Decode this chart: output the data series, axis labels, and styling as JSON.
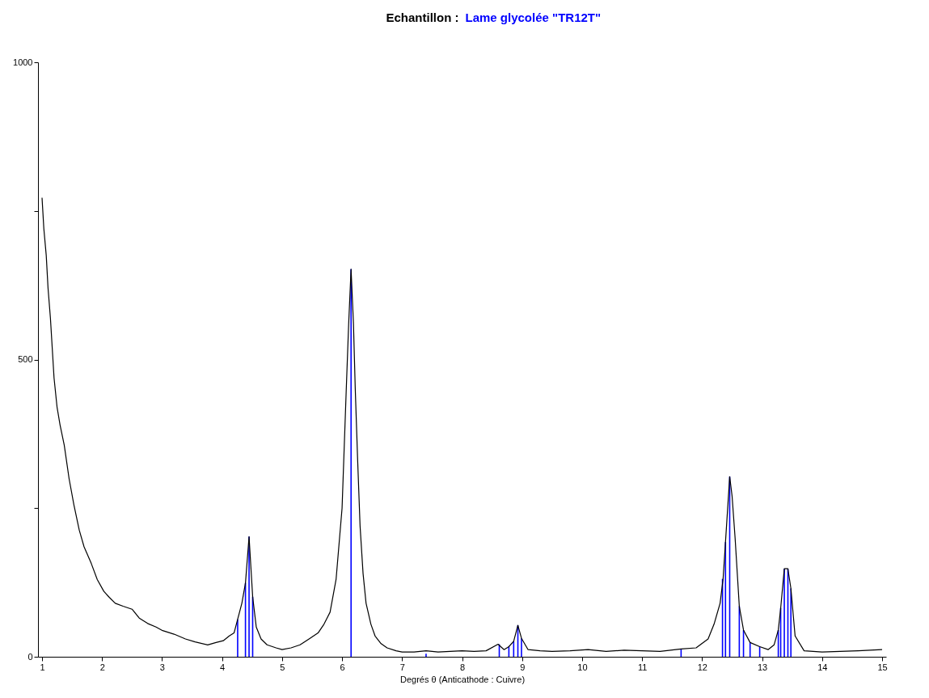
{
  "chart_data": {
    "type": "line",
    "title": "Echantillon :",
    "subtitle": "Lame glycolée \"TR12T\"",
    "xlabel": "Degrés θ (Anticathode : Cuivre)",
    "xlim": [
      1,
      15
    ],
    "xticks": [
      1,
      2,
      3,
      4,
      5,
      6,
      7,
      8,
      9,
      10,
      11,
      12,
      13,
      14,
      15
    ],
    "ylim": [
      0,
      1000
    ],
    "yticks": [
      0,
      {
        "value": 250,
        "label": null
      },
      500,
      {
        "value": 750,
        "label": null
      },
      1000
    ],
    "grid": false,
    "marker": "none",
    "line_style": "solid",
    "series": [
      {
        "color": "#000000",
        "x": [
          1.0,
          1.03,
          1.07,
          1.1,
          1.14,
          1.2,
          1.25,
          1.3,
          1.37,
          1.45,
          1.53,
          1.62,
          1.7,
          1.82,
          1.92,
          2.03,
          2.12,
          2.22,
          2.35,
          2.5,
          2.62,
          2.76,
          2.9,
          3.01,
          3.2,
          3.39,
          3.55,
          3.76,
          3.9,
          4.02,
          4.12,
          4.2,
          4.26,
          4.33,
          4.39,
          4.45,
          4.51,
          4.57,
          4.65,
          4.75,
          4.9,
          5.0,
          5.15,
          5.3,
          5.45,
          5.6,
          5.7,
          5.8,
          5.9,
          6.0,
          6.07,
          6.11,
          6.15,
          6.19,
          6.22,
          6.26,
          6.3,
          6.35,
          6.4,
          6.48,
          6.55,
          6.65,
          6.75,
          6.9,
          7.0,
          7.2,
          7.4,
          7.6,
          7.8,
          8.0,
          8.2,
          8.4,
          8.6,
          8.7,
          8.78,
          8.86,
          8.93,
          8.99,
          9.1,
          9.3,
          9.5,
          9.8,
          10.1,
          10.4,
          10.7,
          11.0,
          11.3,
          11.65,
          11.9,
          12.1,
          12.2,
          12.3,
          12.35,
          12.39,
          12.46,
          12.5,
          12.55,
          12.62,
          12.69,
          12.8,
          12.96,
          13.1,
          13.2,
          13.27,
          13.31,
          13.37,
          13.43,
          13.48,
          13.55,
          13.7,
          14.0,
          14.3,
          14.6,
          15.0
        ],
        "values": [
          772,
          720,
          675,
          620,
          569,
          469,
          420,
          390,
          356,
          300,
          256,
          213,
          185,
          157,
          130,
          110,
          100,
          90,
          85,
          80,
          65,
          56,
          50,
          44,
          38,
          30,
          25,
          20,
          24,
          27,
          35,
          40,
          63,
          90,
          124,
          202,
          101,
          50,
          30,
          20,
          15,
          12,
          15,
          20,
          30,
          40,
          55,
          75,
          130,
          250,
          450,
          560,
          652,
          560,
          450,
          330,
          220,
          140,
          90,
          55,
          35,
          22,
          15,
          10,
          8,
          8,
          10,
          8,
          9,
          10,
          9,
          10,
          21,
          12,
          17,
          26,
          53,
          31,
          12,
          10,
          9,
          10,
          12,
          9,
          11,
          10,
          9,
          13,
          15,
          30,
          55,
          90,
          131,
          193,
          303,
          270,
          200,
          85,
          45,
          24,
          17,
          12,
          20,
          45,
          82,
          148,
          148,
          115,
          35,
          10,
          8,
          9,
          10,
          12
        ]
      },
      {
        "type": "bar",
        "color": "#0000ff",
        "x": [
          4.26,
          4.39,
          4.45,
          4.51,
          6.15,
          7.4,
          8.62,
          8.78,
          8.86,
          8.93,
          8.99,
          11.65,
          12.34,
          12.39,
          12.46,
          12.62,
          12.69,
          12.8,
          12.96,
          13.27,
          13.31,
          13.37,
          13.43,
          13.48
        ],
        "values": [
          63,
          124,
          202,
          101,
          652,
          5,
          21,
          17,
          26,
          53,
          31,
          13,
          131,
          193,
          303,
          85,
          45,
          24,
          17,
          45,
          82,
          148,
          148,
          115
        ]
      }
    ]
  }
}
